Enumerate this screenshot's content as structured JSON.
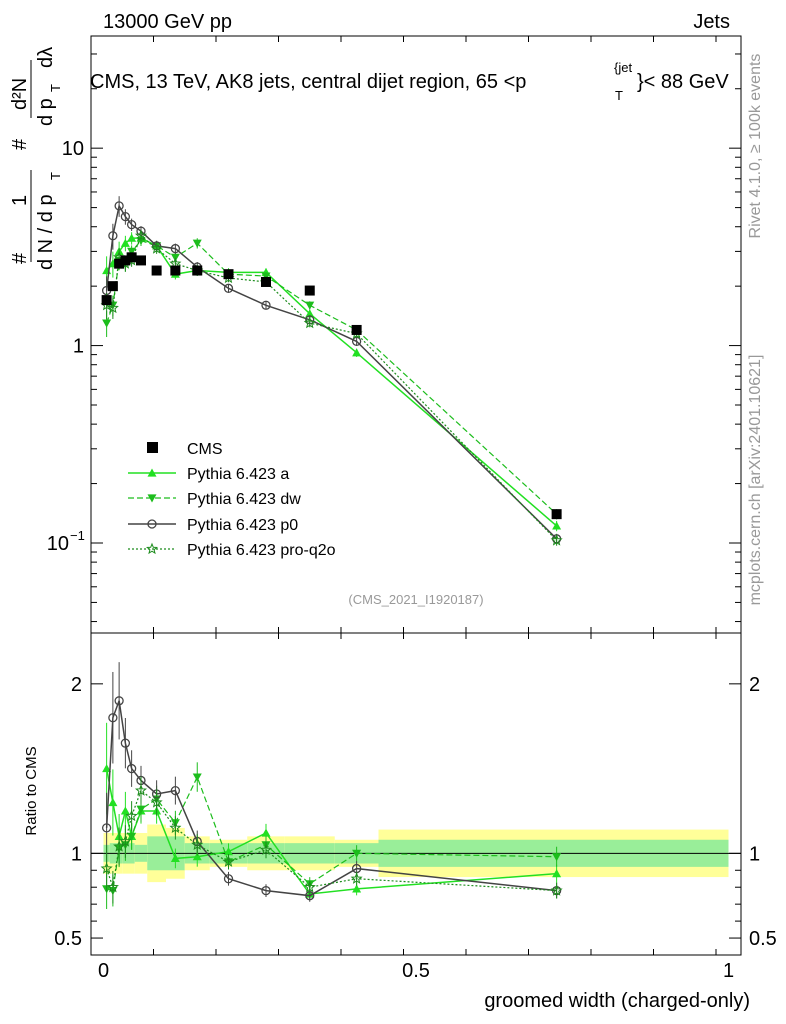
{
  "header": {
    "left": "13000 GeV pp",
    "right": "Jets"
  },
  "side_labels": {
    "rivet": "Rivet 4.1.0, ≥ 100k events",
    "mcplots": "mcplots.cern.ch [arXiv:2401.10621]"
  },
  "chart_data": {
    "type": "line",
    "title": "CMS, 13 TeV, AK8 jets, central dijet region, 65 <p",
    "title_sup": "{jet",
    "title_sub": "T",
    "title_end": "}< 88 GeV",
    "watermark": "(CMS_2021_I1920187)",
    "xlabel": "groomed width (charged-only)",
    "ylabel_main": {
      "hash1": "#",
      "one": "1",
      "dN_dpT": "d N / d p",
      "T": "T",
      "hash2": "#",
      "d2N": "d²N",
      "dpTdl": "d p",
      "T2": "T",
      "dl": "dλ"
    },
    "ylabel_ratio": "Ratio to CMS",
    "xlim": [
      -0.02,
      1.02
    ],
    "main_ylim": [
      0.035,
      37
    ],
    "ratio_ylim": [
      0.4,
      2.3
    ],
    "x_ticks": [
      {
        "v": 0,
        "label": "0"
      },
      {
        "v": 0.5,
        "label": "0.5"
      },
      {
        "v": 1,
        "label": "1"
      }
    ],
    "main_y_ticks": [
      {
        "v": 0.1,
        "base": "10",
        "exp": "−1"
      },
      {
        "v": 1,
        "base": "1",
        "exp": ""
      },
      {
        "v": 10,
        "base": "10",
        "exp": ""
      }
    ],
    "ratio_y_ticks": [
      {
        "v": 0.5,
        "label": "0.5"
      },
      {
        "v": 1,
        "label": "1"
      },
      {
        "v": 2,
        "label": "2"
      }
    ],
    "data": {
      "name": "CMS",
      "x": [
        0.005,
        0.015,
        0.025,
        0.035,
        0.045,
        0.06,
        0.085,
        0.115,
        0.15,
        0.2,
        0.26,
        0.33,
        0.405,
        0.725
      ],
      "y": [
        1.7,
        2.0,
        2.6,
        2.7,
        2.8,
        2.7,
        2.4,
        2.4,
        2.4,
        2.3,
        2.1,
        1.9,
        1.2,
        0.14
      ],
      "band_edges": [
        0,
        0.01,
        0.02,
        0.03,
        0.04,
        0.05,
        0.07,
        0.1,
        0.13,
        0.17,
        0.23,
        0.29,
        0.37,
        0.44,
        1.0
      ],
      "band_stat": [
        0.05,
        0.06,
        0.06,
        0.06,
        0.06,
        0.05,
        0.1,
        0.1,
        0.06,
        0.06,
        0.06,
        0.06,
        0.06,
        0.08
      ],
      "band_total": [
        0.12,
        0.12,
        0.12,
        0.12,
        0.12,
        0.12,
        0.17,
        0.15,
        0.1,
        0.08,
        0.1,
        0.1,
        0.08,
        0.14
      ]
    },
    "series": [
      {
        "name": "Pythia 6.423 a",
        "color": "#22e022",
        "dash": "",
        "marker": "triangle-up",
        "lw": 1.5,
        "x": [
          0.005,
          0.015,
          0.025,
          0.035,
          0.045,
          0.06,
          0.085,
          0.115,
          0.15,
          0.2,
          0.26,
          0.33,
          0.405,
          0.725
        ],
        "y": [
          2.4,
          2.6,
          3.0,
          3.3,
          3.5,
          3.5,
          3.2,
          2.3,
          2.4,
          2.35,
          2.35,
          1.45,
          0.92,
          0.122
        ],
        "ratio": [
          1.5,
          1.3,
          1.1,
          1.25,
          1.1,
          1.25,
          1.25,
          0.97,
          0.98,
          1.01,
          1.12,
          0.76,
          0.79,
          0.88
        ],
        "err": [
          0.3,
          0.25,
          0.2,
          0.15,
          0.12,
          0.1,
          0.1,
          0.1,
          0.1,
          0.08,
          0.08,
          0.08,
          0.08,
          0.1
        ]
      },
      {
        "name": "Pythia 6.423 dw",
        "color": "#1cbd1c",
        "dash": "6,3",
        "marker": "triangle-down",
        "lw": 1.2,
        "x": [
          0.005,
          0.015,
          0.025,
          0.035,
          0.045,
          0.06,
          0.085,
          0.115,
          0.15,
          0.2,
          0.26,
          0.33,
          0.405,
          0.725
        ],
        "y": [
          1.3,
          1.6,
          2.7,
          2.6,
          3.0,
          3.4,
          3.2,
          2.8,
          3.3,
          2.3,
          2.25,
          1.6,
          1.2,
          0.14
        ],
        "ratio": [
          0.79,
          0.78,
          1.03,
          1.05,
          1.1,
          1.26,
          1.32,
          1.18,
          1.45,
          0.95,
          1.05,
          0.82,
          1.0,
          0.98
        ],
        "err": [
          0.25,
          0.2,
          0.18,
          0.15,
          0.12,
          0.1,
          0.1,
          0.1,
          0.1,
          0.08,
          0.08,
          0.08,
          0.08,
          0.1
        ]
      },
      {
        "name": "Pythia 6.423 p0",
        "color": "#444444",
        "dash": "",
        "marker": "circle",
        "lw": 1.5,
        "x": [
          0.005,
          0.015,
          0.025,
          0.035,
          0.045,
          0.06,
          0.085,
          0.115,
          0.15,
          0.2,
          0.26,
          0.33,
          0.405,
          0.725
        ],
        "y": [
          1.9,
          3.6,
          5.1,
          4.5,
          4.1,
          3.8,
          3.2,
          3.1,
          2.5,
          1.95,
          1.6,
          1.35,
          1.05,
          0.105
        ],
        "ratio": [
          1.15,
          1.8,
          1.9,
          1.65,
          1.5,
          1.43,
          1.35,
          1.37,
          1.07,
          0.85,
          0.78,
          0.75,
          0.91,
          0.78
        ],
        "err": [
          0.3,
          0.25,
          0.2,
          0.15,
          0.12,
          0.1,
          0.1,
          0.1,
          0.1,
          0.08,
          0.08,
          0.08,
          0.08,
          0.1
        ]
      },
      {
        "name": "Pythia 6.423 pro-q2o",
        "color": "#1c8c1c",
        "dash": "2,2",
        "marker": "star",
        "lw": 1.2,
        "x": [
          0.005,
          0.015,
          0.025,
          0.035,
          0.045,
          0.06,
          0.085,
          0.115,
          0.15,
          0.2,
          0.26,
          0.33,
          0.405,
          0.725
        ],
        "y": [
          1.6,
          1.55,
          2.8,
          2.6,
          2.7,
          3.6,
          3.1,
          2.6,
          2.4,
          2.2,
          2.1,
          1.3,
          1.15,
          0.103
        ],
        "ratio": [
          0.91,
          0.8,
          1.04,
          1.07,
          1.22,
          1.37,
          1.3,
          1.15,
          1.05,
          0.95,
          1.02,
          0.8,
          0.85,
          0.78
        ],
        "err": [
          0.25,
          0.2,
          0.18,
          0.15,
          0.12,
          0.1,
          0.1,
          0.1,
          0.1,
          0.08,
          0.08,
          0.08,
          0.08,
          0.1
        ]
      }
    ]
  }
}
